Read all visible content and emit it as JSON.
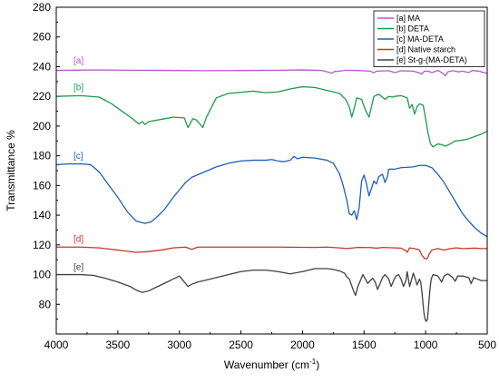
{
  "chart_data": {
    "type": "line",
    "xlabel": "Wavenumber (cm",
    "xlabel_sup": "-1",
    "xlabel_end": ")",
    "ylabel": "Transmittance %",
    "xlim": [
      4000,
      500
    ],
    "ylim": [
      60,
      280
    ],
    "x_ticks": [
      4000,
      3500,
      3000,
      2500,
      2000,
      1500,
      1000,
      500
    ],
    "y_ticks": [
      80,
      100,
      120,
      140,
      160,
      180,
      200,
      220,
      240,
      260,
      280
    ],
    "legend_position": "top-right",
    "series": [
      {
        "name": "[a] MA",
        "tag": "[a]",
        "color": "#b45cc8",
        "tag_pos": [
          3860,
          242
        ],
        "points": [
          [
            4000,
            237.5
          ],
          [
            3700,
            237.8
          ],
          [
            3400,
            237.6
          ],
          [
            3100,
            237.5
          ],
          [
            2800,
            237.3
          ],
          [
            2500,
            237.4
          ],
          [
            2200,
            237.6
          ],
          [
            2000,
            237.8
          ],
          [
            1850,
            237.5
          ],
          [
            1800,
            236.5
          ],
          [
            1760,
            235.6
          ],
          [
            1740,
            236.8
          ],
          [
            1700,
            237.0
          ],
          [
            1650,
            237.6
          ],
          [
            1550,
            237.4
          ],
          [
            1450,
            237.0
          ],
          [
            1420,
            235.8
          ],
          [
            1400,
            237.0
          ],
          [
            1300,
            237.3
          ],
          [
            1250,
            236.0
          ],
          [
            1200,
            237.2
          ],
          [
            1100,
            237.0
          ],
          [
            1060,
            236.0
          ],
          [
            1030,
            235.0
          ],
          [
            1010,
            237.0
          ],
          [
            980,
            237.0
          ],
          [
            950,
            236.0
          ],
          [
            900,
            237.5
          ],
          [
            860,
            235.5
          ],
          [
            840,
            233.8
          ],
          [
            820,
            236.5
          ],
          [
            780,
            237.3
          ],
          [
            730,
            236.5
          ],
          [
            700,
            237.0
          ],
          [
            650,
            236.0
          ],
          [
            620,
            237.5
          ],
          [
            560,
            236.8
          ],
          [
            500,
            235.5
          ]
        ]
      },
      {
        "name": "[b] DETA",
        "tag": "[b]",
        "color": "#1e9a4b",
        "tag_pos": [
          3860,
          224
        ],
        "points": [
          [
            4000,
            220
          ],
          [
            3800,
            220.5
          ],
          [
            3650,
            219.5
          ],
          [
            3550,
            215
          ],
          [
            3450,
            209
          ],
          [
            3380,
            205
          ],
          [
            3330,
            201.5
          ],
          [
            3300,
            203
          ],
          [
            3280,
            201
          ],
          [
            3250,
            203
          ],
          [
            3150,
            204.5
          ],
          [
            3050,
            206
          ],
          [
            2960,
            205.5
          ],
          [
            2930,
            199
          ],
          [
            2890,
            205
          ],
          [
            2860,
            204
          ],
          [
            2840,
            202
          ],
          [
            2810,
            199
          ],
          [
            2780,
            206
          ],
          [
            2700,
            219
          ],
          [
            2600,
            222
          ],
          [
            2400,
            223.5
          ],
          [
            2300,
            222.5
          ],
          [
            2200,
            223
          ],
          [
            2100,
            225
          ],
          [
            2000,
            226.5
          ],
          [
            1900,
            226
          ],
          [
            1800,
            224
          ],
          [
            1700,
            222
          ],
          [
            1650,
            218
          ],
          [
            1620,
            213
          ],
          [
            1600,
            206
          ],
          [
            1580,
            212
          ],
          [
            1560,
            219
          ],
          [
            1520,
            218
          ],
          [
            1490,
            211
          ],
          [
            1460,
            206
          ],
          [
            1440,
            213
          ],
          [
            1420,
            220
          ],
          [
            1380,
            221.5
          ],
          [
            1330,
            218
          ],
          [
            1300,
            220
          ],
          [
            1270,
            219.5
          ],
          [
            1250,
            220
          ],
          [
            1200,
            220.5
          ],
          [
            1150,
            219
          ],
          [
            1130,
            212
          ],
          [
            1110,
            214.5
          ],
          [
            1090,
            208
          ],
          [
            1070,
            213
          ],
          [
            1050,
            215
          ],
          [
            1020,
            214
          ],
          [
            1000,
            205
          ],
          [
            980,
            195
          ],
          [
            960,
            188
          ],
          [
            940,
            186
          ],
          [
            900,
            188
          ],
          [
            870,
            187.5
          ],
          [
            840,
            186.5
          ],
          [
            800,
            188
          ],
          [
            760,
            190
          ],
          [
            700,
            190.5
          ],
          [
            650,
            191.5
          ],
          [
            600,
            193
          ],
          [
            550,
            194.5
          ],
          [
            500,
            196.5
          ]
        ]
      },
      {
        "name": "[c] MA-DETA",
        "tag": "[c]",
        "color": "#1f5fb5",
        "tag_pos": [
          3860,
          178
        ],
        "points": [
          [
            4000,
            174
          ],
          [
            3900,
            174.5
          ],
          [
            3800,
            174.6
          ],
          [
            3720,
            174
          ],
          [
            3650,
            169
          ],
          [
            3580,
            161
          ],
          [
            3500,
            152
          ],
          [
            3420,
            142
          ],
          [
            3350,
            136
          ],
          [
            3280,
            134.5
          ],
          [
            3230,
            135.5
          ],
          [
            3180,
            139
          ],
          [
            3120,
            144
          ],
          [
            3050,
            152
          ],
          [
            3000,
            157
          ],
          [
            2950,
            162
          ],
          [
            2900,
            165.5
          ],
          [
            2800,
            169
          ],
          [
            2700,
            172.5
          ],
          [
            2600,
            175
          ],
          [
            2500,
            176.5
          ],
          [
            2400,
            177
          ],
          [
            2300,
            177
          ],
          [
            2250,
            177.5
          ],
          [
            2200,
            176.5
          ],
          [
            2150,
            176
          ],
          [
            2100,
            177
          ],
          [
            2070,
            179.5
          ],
          [
            2040,
            178
          ],
          [
            2000,
            179
          ],
          [
            1900,
            178.5
          ],
          [
            1800,
            177
          ],
          [
            1750,
            175
          ],
          [
            1700,
            168
          ],
          [
            1670,
            160
          ],
          [
            1640,
            150
          ],
          [
            1620,
            141
          ],
          [
            1600,
            140
          ],
          [
            1580,
            143
          ],
          [
            1560,
            137
          ],
          [
            1540,
            145
          ],
          [
            1520,
            163
          ],
          [
            1500,
            167
          ],
          [
            1480,
            161
          ],
          [
            1460,
            153
          ],
          [
            1440,
            158
          ],
          [
            1420,
            163
          ],
          [
            1400,
            161
          ],
          [
            1380,
            166
          ],
          [
            1350,
            167.5
          ],
          [
            1330,
            162
          ],
          [
            1310,
            166
          ],
          [
            1300,
            171
          ],
          [
            1250,
            171
          ],
          [
            1200,
            172
          ],
          [
            1100,
            172.5
          ],
          [
            1050,
            173.5
          ],
          [
            1000,
            173.5
          ],
          [
            950,
            172
          ],
          [
            900,
            167.5
          ],
          [
            850,
            162
          ],
          [
            800,
            155
          ],
          [
            750,
            148
          ],
          [
            700,
            141
          ],
          [
            650,
            136
          ],
          [
            600,
            131.5
          ],
          [
            550,
            128
          ],
          [
            500,
            125.5
          ]
        ]
      },
      {
        "name": "[d] Native starch",
        "tag": "[d]",
        "color": "#c0392b",
        "tag_pos": [
          3860,
          122
        ],
        "points": [
          [
            4000,
            118.5
          ],
          [
            3800,
            118.5
          ],
          [
            3650,
            118
          ],
          [
            3550,
            117
          ],
          [
            3450,
            116
          ],
          [
            3350,
            115
          ],
          [
            3250,
            115.5
          ],
          [
            3150,
            116.5
          ],
          [
            3050,
            118
          ],
          [
            2950,
            118.5
          ],
          [
            2900,
            117
          ],
          [
            2850,
            118.5
          ],
          [
            2500,
            118.5
          ],
          [
            2200,
            118.5
          ],
          [
            1900,
            118.3
          ],
          [
            1800,
            118.5
          ],
          [
            1700,
            118
          ],
          [
            1640,
            117.5
          ],
          [
            1550,
            118.3
          ],
          [
            1450,
            118.2
          ],
          [
            1400,
            117.8
          ],
          [
            1350,
            118.3
          ],
          [
            1250,
            118
          ],
          [
            1200,
            117.8
          ],
          [
            1160,
            116
          ],
          [
            1150,
            115
          ],
          [
            1130,
            118
          ],
          [
            1080,
            117.3
          ],
          [
            1050,
            116.5
          ],
          [
            1030,
            113
          ],
          [
            1010,
            111
          ],
          [
            995,
            110.5
          ],
          [
            985,
            111
          ],
          [
            970,
            114
          ],
          [
            950,
            116.5
          ],
          [
            900,
            117.5
          ],
          [
            850,
            116.5
          ],
          [
            800,
            117.5
          ],
          [
            750,
            118
          ],
          [
            700,
            117.5
          ],
          [
            600,
            117.8
          ],
          [
            550,
            117.5
          ],
          [
            500,
            117.5
          ]
        ]
      },
      {
        "name": "[e] St-g-(MA-DETA)",
        "tag": "[e]",
        "color": "#404040",
        "tag_pos": [
          3860,
          103
        ],
        "points": [
          [
            4000,
            100
          ],
          [
            3800,
            100
          ],
          [
            3700,
            99.5
          ],
          [
            3600,
            97.5
          ],
          [
            3500,
            95
          ],
          [
            3400,
            92
          ],
          [
            3350,
            89.5
          ],
          [
            3300,
            88
          ],
          [
            3250,
            89
          ],
          [
            3200,
            91
          ],
          [
            3100,
            95
          ],
          [
            3050,
            97
          ],
          [
            3000,
            99
          ],
          [
            2970,
            96
          ],
          [
            2930,
            92
          ],
          [
            2900,
            93.5
          ],
          [
            2850,
            95
          ],
          [
            2800,
            96
          ],
          [
            2700,
            98
          ],
          [
            2600,
            100
          ],
          [
            2500,
            102
          ],
          [
            2400,
            103
          ],
          [
            2300,
            103
          ],
          [
            2200,
            102
          ],
          [
            2100,
            100.5
          ],
          [
            2000,
            102
          ],
          [
            1900,
            104
          ],
          [
            1800,
            104
          ],
          [
            1750,
            103.5
          ],
          [
            1700,
            102.5
          ],
          [
            1660,
            101
          ],
          [
            1640,
            98.5
          ],
          [
            1620,
            97
          ],
          [
            1590,
            90
          ],
          [
            1570,
            86
          ],
          [
            1550,
            92
          ],
          [
            1530,
            96
          ],
          [
            1510,
            100
          ],
          [
            1490,
            97
          ],
          [
            1470,
            94
          ],
          [
            1450,
            96
          ],
          [
            1430,
            97.5
          ],
          [
            1410,
            95
          ],
          [
            1390,
            90
          ],
          [
            1370,
            94
          ],
          [
            1350,
            98
          ],
          [
            1330,
            100
          ],
          [
            1300,
            97
          ],
          [
            1280,
            92
          ],
          [
            1260,
            96
          ],
          [
            1240,
            99
          ],
          [
            1220,
            100
          ],
          [
            1200,
            97
          ],
          [
            1180,
            92
          ],
          [
            1160,
            96
          ],
          [
            1150,
            102
          ],
          [
            1130,
            92
          ],
          [
            1120,
            95
          ],
          [
            1100,
            101
          ],
          [
            1080,
            96
          ],
          [
            1070,
            93
          ],
          [
            1050,
            97
          ],
          [
            1040,
            95
          ],
          [
            1030,
            88
          ],
          [
            1015,
            75
          ],
          [
            1005,
            70
          ],
          [
            995,
            68.5
          ],
          [
            985,
            70
          ],
          [
            975,
            80
          ],
          [
            965,
            90
          ],
          [
            955,
            97
          ],
          [
            940,
            100
          ],
          [
            900,
            99
          ],
          [
            870,
            95
          ],
          [
            850,
            99
          ],
          [
            820,
            100.5
          ],
          [
            780,
            98
          ],
          [
            760,
            95.5
          ],
          [
            740,
            99
          ],
          [
            700,
            99
          ],
          [
            650,
            98
          ],
          [
            630,
            94
          ],
          [
            610,
            98
          ],
          [
            580,
            97
          ],
          [
            550,
            96
          ],
          [
            500,
            96
          ]
        ]
      }
    ]
  }
}
